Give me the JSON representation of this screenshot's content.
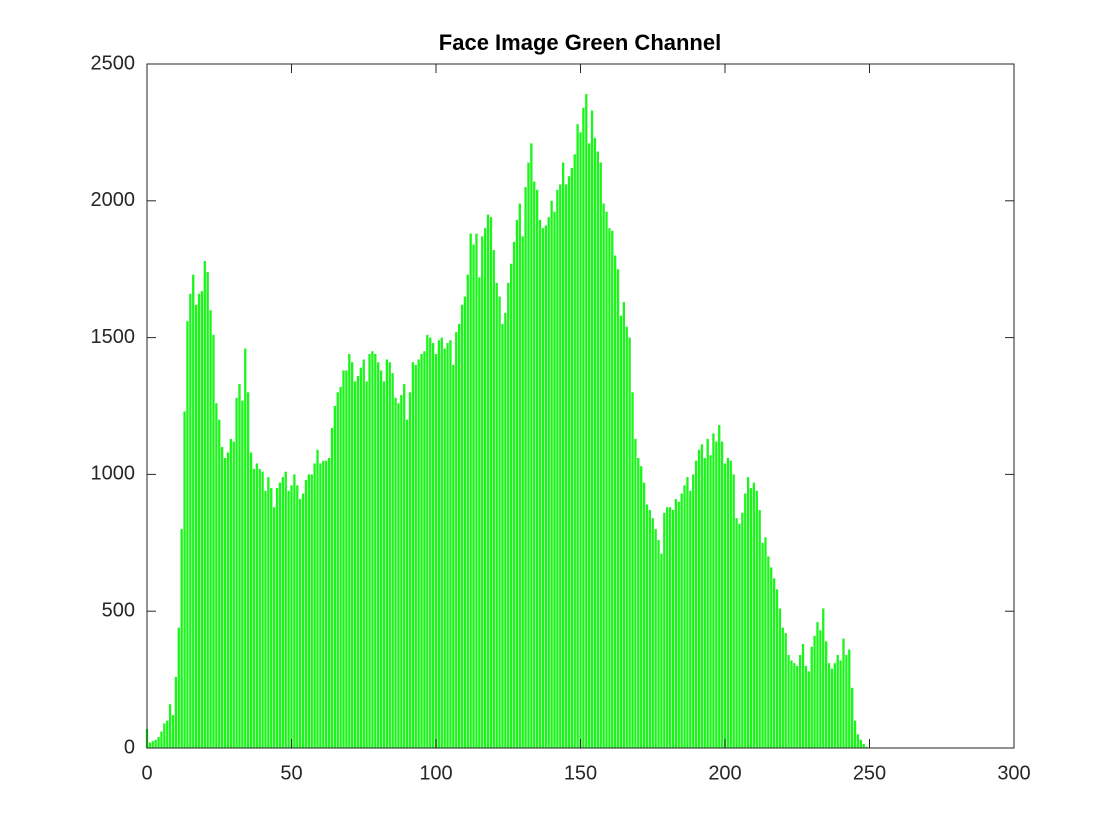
{
  "chart_data": {
    "type": "bar",
    "title": "Face Image Green Channel",
    "color": "#1cf51c",
    "x": [
      0,
      1,
      2,
      3,
      4,
      5,
      6,
      7,
      8,
      9,
      10,
      11,
      12,
      13,
      14,
      15,
      16,
      17,
      18,
      19,
      20,
      21,
      22,
      23,
      24,
      25,
      26,
      27,
      28,
      29,
      30,
      31,
      32,
      33,
      34,
      35,
      36,
      37,
      38,
      39,
      40,
      41,
      42,
      43,
      44,
      45,
      46,
      47,
      48,
      49,
      50,
      51,
      52,
      53,
      54,
      55,
      56,
      57,
      58,
      59,
      60,
      61,
      62,
      63,
      64,
      65,
      66,
      67,
      68,
      69,
      70,
      71,
      72,
      73,
      74,
      75,
      76,
      77,
      78,
      79,
      80,
      81,
      82,
      83,
      84,
      85,
      86,
      87,
      88,
      89,
      90,
      91,
      92,
      93,
      94,
      95,
      96,
      97,
      98,
      99,
      100,
      101,
      102,
      103,
      104,
      105,
      106,
      107,
      108,
      109,
      110,
      111,
      112,
      113,
      114,
      115,
      116,
      117,
      118,
      119,
      120,
      121,
      122,
      123,
      124,
      125,
      126,
      127,
      128,
      129,
      130,
      131,
      132,
      133,
      134,
      135,
      136,
      137,
      138,
      139,
      140,
      141,
      142,
      143,
      144,
      145,
      146,
      147,
      148,
      149,
      150,
      151,
      152,
      153,
      154,
      155,
      156,
      157,
      158,
      159,
      160,
      161,
      162,
      163,
      164,
      165,
      166,
      167,
      168,
      169,
      170,
      171,
      172,
      173,
      174,
      175,
      176,
      177,
      178,
      179,
      180,
      181,
      182,
      183,
      184,
      185,
      186,
      187,
      188,
      189,
      190,
      191,
      192,
      193,
      194,
      195,
      196,
      197,
      198,
      199,
      200,
      201,
      202,
      203,
      204,
      205,
      206,
      207,
      208,
      209,
      210,
      211,
      212,
      213,
      214,
      215,
      216,
      217,
      218,
      219,
      220,
      221,
      222,
      223,
      224,
      225,
      226,
      227,
      228,
      229,
      230,
      231,
      232,
      233,
      234,
      235,
      236,
      237,
      238,
      239,
      240,
      241,
      242,
      243,
      244,
      245,
      246,
      247,
      248,
      249,
      250,
      251,
      252,
      253,
      254,
      255
    ],
    "values": [
      70,
      20,
      25,
      30,
      40,
      60,
      90,
      100,
      160,
      120,
      260,
      440,
      800,
      1230,
      1560,
      1660,
      1730,
      1620,
      1660,
      1670,
      1780,
      1740,
      1600,
      1510,
      1260,
      1200,
      1100,
      1060,
      1080,
      1130,
      1120,
      1280,
      1330,
      1270,
      1460,
      1300,
      1080,
      1020,
      1040,
      1020,
      1010,
      940,
      990,
      950,
      880,
      950,
      970,
      990,
      1010,
      940,
      960,
      1000,
      960,
      910,
      930,
      980,
      1000,
      1000,
      1040,
      1090,
      1040,
      1050,
      1050,
      1060,
      1170,
      1250,
      1300,
      1320,
      1380,
      1380,
      1440,
      1410,
      1340,
      1360,
      1390,
      1420,
      1340,
      1440,
      1450,
      1440,
      1410,
      1380,
      1340,
      1420,
      1410,
      1370,
      1280,
      1260,
      1290,
      1330,
      1200,
      1300,
      1410,
      1400,
      1420,
      1440,
      1450,
      1510,
      1500,
      1480,
      1440,
      1490,
      1500,
      1460,
      1480,
      1490,
      1400,
      1520,
      1550,
      1620,
      1650,
      1730,
      1880,
      1840,
      1880,
      1720,
      1870,
      1900,
      1950,
      1940,
      1820,
      1700,
      1650,
      1550,
      1590,
      1700,
      1770,
      1850,
      1930,
      1990,
      1870,
      2050,
      2140,
      2210,
      2070,
      2040,
      1930,
      1900,
      1910,
      1940,
      2000,
      1960,
      2040,
      2060,
      2140,
      2060,
      2090,
      2120,
      2170,
      2280,
      2250,
      2340,
      2390,
      2210,
      2330,
      2230,
      2180,
      2140,
      1990,
      1960,
      1900,
      1890,
      1800,
      1750,
      1580,
      1630,
      1540,
      1500,
      1300,
      1130,
      1060,
      1030,
      970,
      890,
      870,
      840,
      800,
      760,
      710,
      860,
      880,
      880,
      870,
      910,
      900,
      930,
      960,
      990,
      940,
      1000,
      1050,
      1090,
      1110,
      1060,
      1130,
      1070,
      1150,
      1120,
      1180,
      1120,
      1040,
      1060,
      1050,
      1000,
      840,
      820,
      860,
      930,
      990,
      950,
      970,
      940,
      870,
      750,
      770,
      700,
      660,
      620,
      580,
      510,
      440,
      420,
      340,
      320,
      310,
      300,
      340,
      380,
      300,
      280,
      370,
      410,
      460,
      430,
      510,
      390,
      310,
      290,
      310,
      340,
      320,
      400,
      340,
      360,
      220,
      100,
      50,
      30,
      15,
      5,
      0,
      0,
      0,
      0,
      0,
      0
    ],
    "xlim": [
      0,
      300
    ],
    "xticks": [
      0,
      50,
      100,
      150,
      200,
      250,
      300
    ],
    "ylim": [
      0,
      2500
    ],
    "yticks": [
      0,
      500,
      1000,
      1500,
      2000,
      2500
    ]
  }
}
